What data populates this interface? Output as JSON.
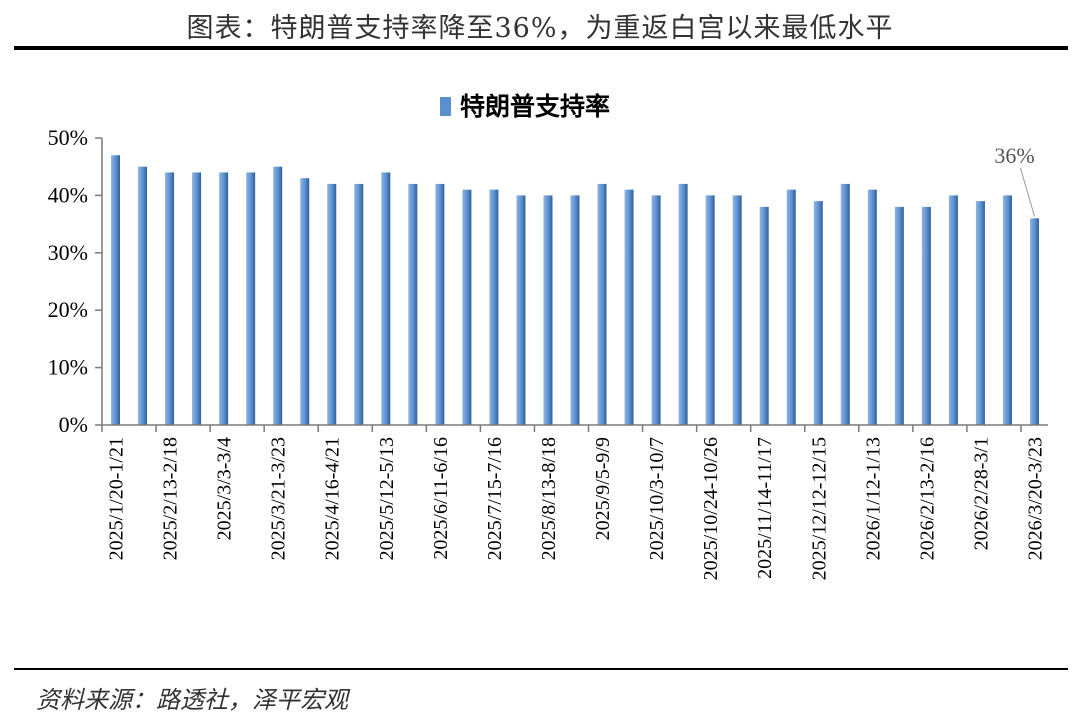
{
  "header": {
    "title": "图表：特朗普支持率降至36%，为重返白宫以来最低水平"
  },
  "footer": {
    "source": "资料来源：路透社，泽平宏观"
  },
  "chart_data": {
    "type": "bar",
    "title": "",
    "xlabel": "",
    "ylabel": "",
    "ylim": [
      0,
      50
    ],
    "y_ticks": [
      "0%",
      "10%",
      "20%",
      "30%",
      "40%",
      "50%"
    ],
    "grid": false,
    "legend": {
      "placement": "top-center",
      "entries": [
        "特朗普支持率"
      ]
    },
    "bar_color": "#5b8fcf",
    "bar_shadow": "#2f5f99",
    "categories": [
      "2025/1/20-1/21",
      "",
      "2025/2/13-2/18",
      "",
      "2025/3/3-3/4",
      "",
      "2025/3/21-3/23",
      "",
      "2025/4/16-4/21",
      "",
      "2025/5/12-5/13",
      "",
      "2025/6/11-6/16",
      "",
      "2025/7/15-7/16",
      "",
      "2025/8/13-8/18",
      "",
      "2025/9/5-9/9",
      "",
      "2025/10/3-10/7",
      "",
      "2025/10/24-10/26",
      "",
      "2025/11/14-11/17",
      "",
      "2025/12/12-12/15",
      "",
      "2026/1/12-1/13",
      "",
      "2026/2/13-2/16",
      "",
      "2026/2/28-3/1",
      "",
      "2026/3/20-3/23"
    ],
    "series": [
      {
        "name": "特朗普支持率",
        "values": [
          47,
          45,
          44,
          44,
          44,
          44,
          45,
          43,
          42,
          42,
          44,
          42,
          42,
          41,
          41,
          40,
          40,
          40,
          42,
          41,
          40,
          42,
          40,
          40,
          38,
          41,
          39,
          42,
          41,
          38,
          38,
          40,
          39,
          40,
          36
        ]
      }
    ],
    "data_labels": [
      {
        "index": 34,
        "text": "36%"
      }
    ]
  }
}
